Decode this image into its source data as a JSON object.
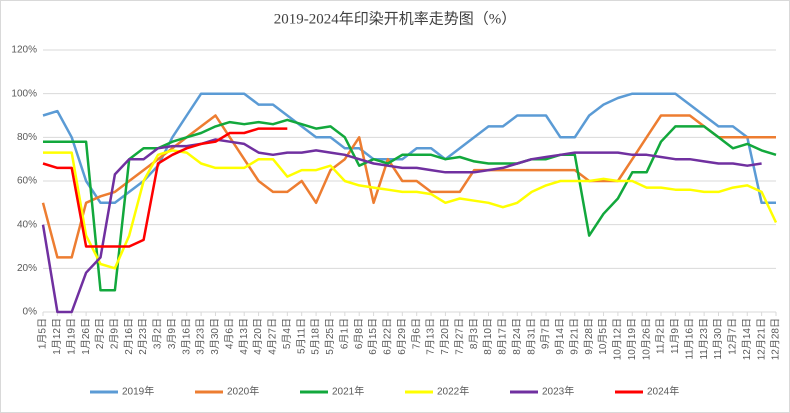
{
  "chart_data": {
    "type": "line",
    "title": "2019-2024年印染开机率走势图（%）",
    "categories": [
      "1月5日",
      "1月12日",
      "1月19日",
      "1月26日",
      "2月2日",
      "2月9日",
      "2月16日",
      "2月23日",
      "3月2日",
      "3月9日",
      "3月16日",
      "3月23日",
      "3月30日",
      "4月6日",
      "4月13日",
      "4月20日",
      "4月27日",
      "5月4日",
      "5月11日",
      "5月18日",
      "5月25日",
      "6月1日",
      "6月8日",
      "6月15日",
      "6月22日",
      "6月29日",
      "7月6日",
      "7月13日",
      "7月20日",
      "7月27日",
      "8月3日",
      "8月10日",
      "8月17日",
      "8月24日",
      "8月31日",
      "9月7日",
      "9月14日",
      "9月21日",
      "9月28日",
      "10月5日",
      "10月12日",
      "10月19日",
      "10月26日",
      "11月2日",
      "11月9日",
      "11月16日",
      "11月23日",
      "11月30日",
      "12月7日",
      "12月14日",
      "12月21日",
      "12月28日"
    ],
    "series": [
      {
        "name": "2019年",
        "color": "#5b9bd5",
        "values": [
          90,
          92,
          80,
          60,
          50,
          50,
          55,
          60,
          67,
          80,
          90,
          100,
          100,
          100,
          100,
          95,
          95,
          90,
          85,
          80,
          80,
          75,
          75,
          70,
          70,
          70,
          75,
          75,
          70,
          75,
          80,
          85,
          85,
          90,
          90,
          90,
          80,
          80,
          90,
          95,
          98,
          100,
          100,
          100,
          100,
          95,
          90,
          85,
          85,
          80,
          50,
          50
        ]
      },
      {
        "name": "2020年",
        "color": "#ed7d31",
        "values": [
          50,
          25,
          25,
          50,
          53,
          55,
          60,
          65,
          70,
          75,
          80,
          85,
          90,
          80,
          70,
          60,
          55,
          55,
          60,
          50,
          65,
          70,
          80,
          50,
          70,
          60,
          60,
          55,
          55,
          55,
          65,
          65,
          65,
          65,
          65,
          65,
          65,
          65,
          60,
          60,
          60,
          70,
          80,
          90,
          90,
          90,
          85,
          80,
          80,
          80,
          80,
          80
        ]
      },
      {
        "name": "2021年",
        "color": "#12a83c",
        "values": [
          78,
          78,
          78,
          78,
          10,
          10,
          70,
          75,
          75,
          78,
          80,
          82,
          85,
          87,
          86,
          87,
          86,
          88,
          86,
          84,
          85,
          80,
          67,
          70,
          68,
          72,
          72,
          72,
          70,
          71,
          69,
          68,
          68,
          68,
          70,
          70,
          72,
          72,
          35,
          45,
          52,
          64,
          64,
          78,
          85,
          85,
          85,
          80,
          75,
          77,
          74,
          72
        ]
      },
      {
        "name": "2022年",
        "color": "#ffff00",
        "values": [
          73,
          73,
          73,
          35,
          22,
          20,
          35,
          60,
          72,
          74,
          73,
          68,
          66,
          66,
          66,
          70,
          70,
          62,
          65,
          65,
          67,
          60,
          58,
          57,
          56,
          55,
          55,
          54,
          50,
          52,
          51,
          50,
          48,
          50,
          55,
          58,
          60,
          60,
          60,
          61,
          60,
          60,
          57,
          57,
          56,
          56,
          55,
          55,
          57,
          58,
          55,
          41
        ]
      },
      {
        "name": "2023年",
        "color": "#7030a0",
        "values": [
          40,
          0,
          0,
          18,
          25,
          63,
          70,
          70,
          75,
          76,
          76,
          77,
          79,
          78,
          77,
          73,
          72,
          73,
          73,
          74,
          73,
          72,
          70,
          68,
          67,
          66,
          66,
          65,
          64,
          64,
          64,
          65,
          66,
          68,
          70,
          71,
          72,
          73,
          73,
          73,
          73,
          72,
          72,
          71,
          70,
          70,
          69,
          68,
          68,
          67,
          68,
          null
        ]
      },
      {
        "name": "2024年",
        "color": "#ff0000",
        "values": [
          68,
          66,
          66,
          30,
          30,
          30,
          30,
          33,
          68,
          72,
          75,
          77,
          78,
          82,
          82,
          84,
          84,
          84,
          null,
          null,
          null,
          null,
          null,
          null,
          null,
          null,
          null,
          null,
          null,
          null,
          null,
          null,
          null,
          null,
          null,
          null,
          null,
          null,
          null,
          null,
          null,
          null,
          null,
          null,
          null,
          null,
          null,
          null,
          null,
          null,
          null,
          null
        ]
      }
    ],
    "ylim": [
      0,
      120
    ],
    "yticks": [
      {
        "value": 0,
        "label": "0%"
      },
      {
        "value": 20,
        "label": "20%"
      },
      {
        "value": 40,
        "label": "40%"
      },
      {
        "value": 60,
        "label": "60%"
      },
      {
        "value": 80,
        "label": "80%"
      },
      {
        "value": 100,
        "label": "100%"
      },
      {
        "value": 120,
        "label": "120%"
      }
    ],
    "grid": true,
    "legend": "bottom"
  }
}
